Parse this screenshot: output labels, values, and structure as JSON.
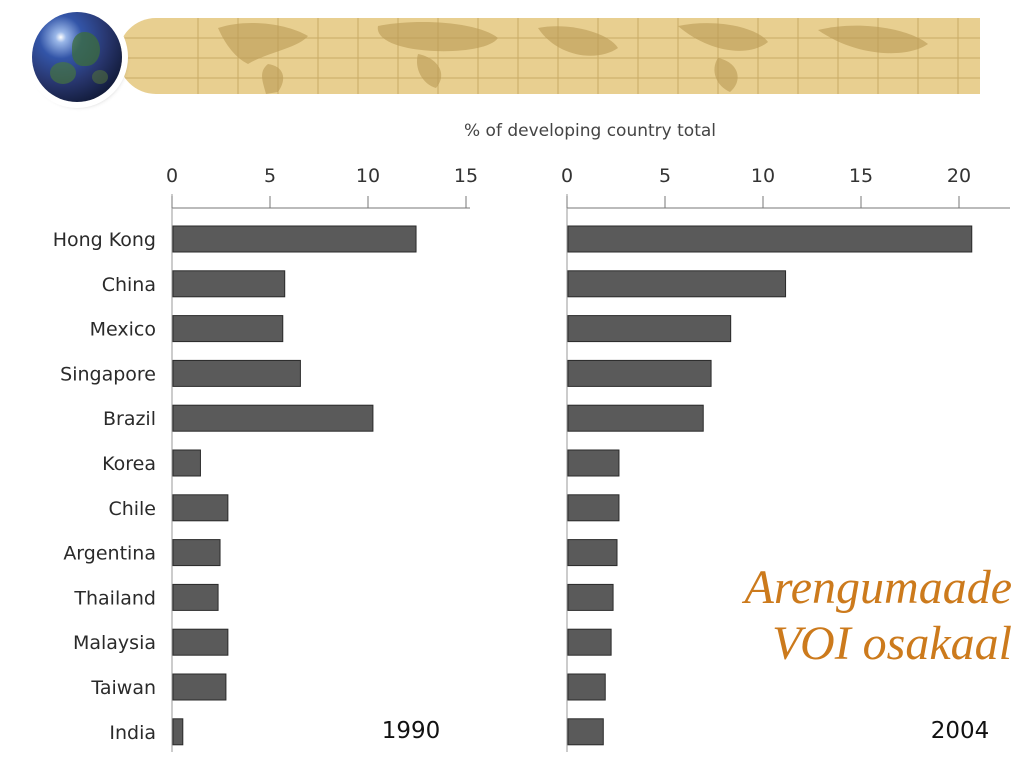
{
  "slide": {
    "overlay_line1": "Arengumaade",
    "overlay_line2": "VOI osakaal",
    "overlay_color": "#cc7a1c",
    "banner_color": "#e8cf90"
  },
  "chart_data": {
    "type": "bar",
    "orientation": "horizontal",
    "xlabel": "% of developing country total",
    "categories": [
      "Hong Kong",
      "China",
      "Mexico",
      "Singapore",
      "Brazil",
      "Korea",
      "Chile",
      "Argentina",
      "Thailand",
      "Malaysia",
      "Taiwan",
      "India"
    ],
    "bar_color": "#5a5a5a",
    "panels": [
      {
        "label": "1990",
        "xlim": [
          0,
          15
        ],
        "ticks": [
          0,
          5,
          10,
          15
        ],
        "values": [
          12.4,
          5.7,
          5.6,
          6.5,
          10.2,
          1.4,
          2.8,
          2.4,
          2.3,
          2.8,
          2.7,
          0.5
        ]
      },
      {
        "label": "2004",
        "xlim": [
          0,
          22
        ],
        "ticks": [
          0,
          5,
          10,
          15,
          20
        ],
        "values": [
          20.6,
          11.1,
          8.3,
          7.3,
          6.9,
          2.6,
          2.6,
          2.5,
          2.3,
          2.2,
          1.9,
          1.8
        ]
      }
    ]
  }
}
